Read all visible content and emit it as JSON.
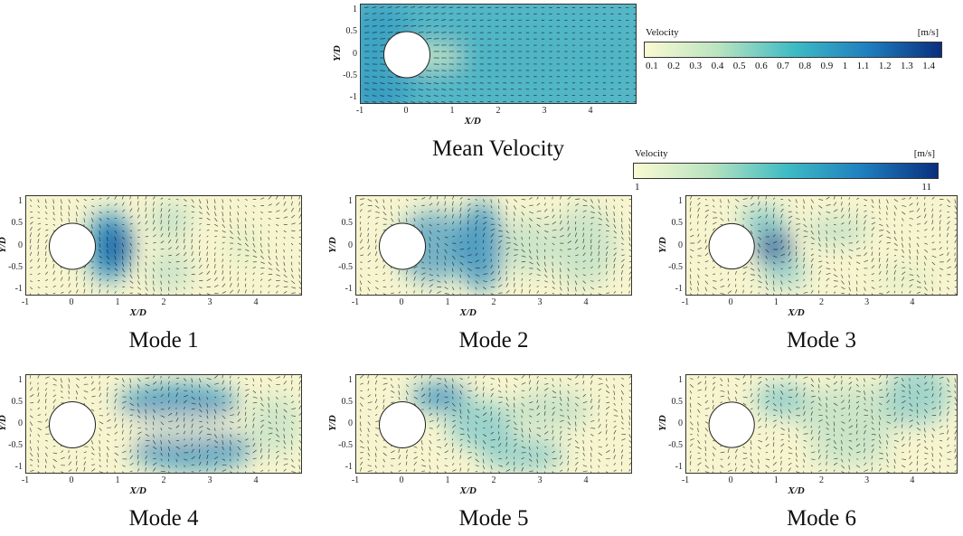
{
  "chart_data": [
    {
      "type": "heatmap",
      "title": "Mean Velocity",
      "xlabel": "X/D",
      "ylabel": "Y/D",
      "xticks": [
        "-1",
        "0",
        "1",
        "2",
        "3",
        "4"
      ],
      "yticks": [
        "1",
        "0.5",
        "0",
        "-0.5",
        "-1"
      ],
      "xlim": [
        -1,
        5
      ],
      "ylim": [
        -1.15,
        1.15
      ]
    },
    {
      "type": "heatmap",
      "title": "Mode 1",
      "xlabel": "X/D",
      "ylabel": "Y/D",
      "xticks": [
        "-1",
        "0",
        "1",
        "2",
        "3",
        "4"
      ],
      "yticks": [
        "1",
        "0.5",
        "0",
        "-0.5",
        "-1"
      ],
      "xlim": [
        -1,
        5
      ],
      "ylim": [
        -1.15,
        1.15
      ]
    },
    {
      "type": "heatmap",
      "title": "Mode 2",
      "xlabel": "X/D",
      "ylabel": "Y/D",
      "xticks": [
        "-1",
        "0",
        "1",
        "2",
        "3",
        "4"
      ],
      "yticks": [
        "1",
        "0.5",
        "0",
        "-0.5",
        "-1"
      ],
      "xlim": [
        -1,
        5
      ],
      "ylim": [
        -1.15,
        1.15
      ]
    },
    {
      "type": "heatmap",
      "title": "Mode 3",
      "xlabel": "X/D",
      "ylabel": "Y/D",
      "xticks": [
        "-1",
        "0",
        "1",
        "2",
        "3",
        "4"
      ],
      "yticks": [
        "1",
        "0.5",
        "0",
        "-0.5",
        "-1"
      ],
      "xlim": [
        -1,
        5
      ],
      "ylim": [
        -1.15,
        1.15
      ]
    },
    {
      "type": "heatmap",
      "title": "Mode 4",
      "xlabel": "X/D",
      "ylabel": "Y/D",
      "xticks": [
        "-1",
        "0",
        "1",
        "2",
        "3",
        "4"
      ],
      "yticks": [
        "1",
        "0.5",
        "0",
        "-0.5",
        "-1"
      ],
      "xlim": [
        -1,
        5
      ],
      "ylim": [
        -1.15,
        1.15
      ]
    },
    {
      "type": "heatmap",
      "title": "Mode 5",
      "xlabel": "X/D",
      "ylabel": "Y/D",
      "xticks": [
        "-1",
        "0",
        "1",
        "2",
        "3",
        "4"
      ],
      "yticks": [
        "1",
        "0.5",
        "0",
        "-0.5",
        "-1"
      ],
      "xlim": [
        -1,
        5
      ],
      "ylim": [
        -1.15,
        1.15
      ]
    },
    {
      "type": "heatmap",
      "title": "Mode 6",
      "xlabel": "X/D",
      "ylabel": "Y/D",
      "xticks": [
        "-1",
        "0",
        "1",
        "2",
        "3",
        "4"
      ],
      "yticks": [
        "1",
        "0.5",
        "0",
        "-0.5",
        "-1"
      ],
      "xlim": [
        -1,
        5
      ],
      "ylim": [
        -1.15,
        1.15
      ]
    }
  ],
  "colorbars": [
    {
      "title": "Velocity",
      "unit": "[m/s]",
      "ticks": [
        "0.1",
        "0.2",
        "0.3",
        "0.4",
        "0.5",
        "0.6",
        "0.7",
        "0.8",
        "0.9",
        "1",
        "1.1",
        "1.2",
        "1.3",
        "1.4"
      ],
      "colors": [
        "#fafad2",
        "#b9e3c0",
        "#3fbcc4",
        "#1f7fbf",
        "#0a2f7e"
      ]
    },
    {
      "title": "Velocity",
      "unit": "[m/s]",
      "ticks": [
        "1",
        "11"
      ],
      "colors": [
        "#fafad2",
        "#b9e3c0",
        "#3fbcc4",
        "#1f7fbf",
        "#0a2f7e"
      ]
    }
  ]
}
